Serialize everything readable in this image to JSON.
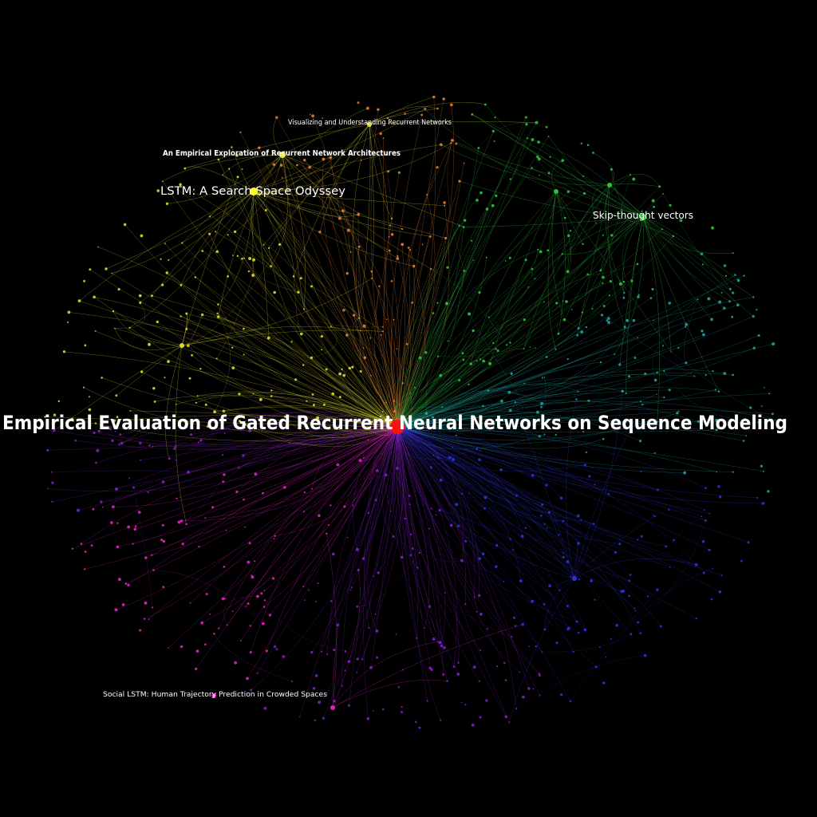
{
  "graph": {
    "background": "#000000",
    "center_node": {
      "label": "Empirical Evaluation of Gated Recurrent Neural Networks on Sequence Modeling",
      "color": "#ff1010"
    },
    "labeled_nodes": [
      {
        "id": "lstm-odyssey",
        "label": "LSTM: A Search Space Odyssey",
        "color": "#ffff22",
        "cluster": "yellow"
      },
      {
        "id": "empirical-exploration",
        "label": "An Empirical Exploration of Recurrent Network Architectures",
        "color": "#eeee33",
        "cluster": "yellow"
      },
      {
        "id": "visualizing",
        "label": "Visualizing and Understanding Recurrent Networks",
        "color": "#dddd33",
        "cluster": "yellow"
      },
      {
        "id": "skip-thought",
        "label": "Skip-thought vectors",
        "color": "#22dd22",
        "cluster": "green"
      },
      {
        "id": "social-lstm",
        "label": "Social LSTM: Human Trajectory Prediction in Crowded Spaces",
        "color": "#ff22dd",
        "cluster": "magenta"
      }
    ],
    "cluster_colors": {
      "yellow": "#d8d830",
      "orange": "#e08030",
      "green": "#30c040",
      "teal": "#20a0a0",
      "blue": "#3030e0",
      "purple": "#8020c0",
      "magenta": "#e020c0"
    }
  }
}
